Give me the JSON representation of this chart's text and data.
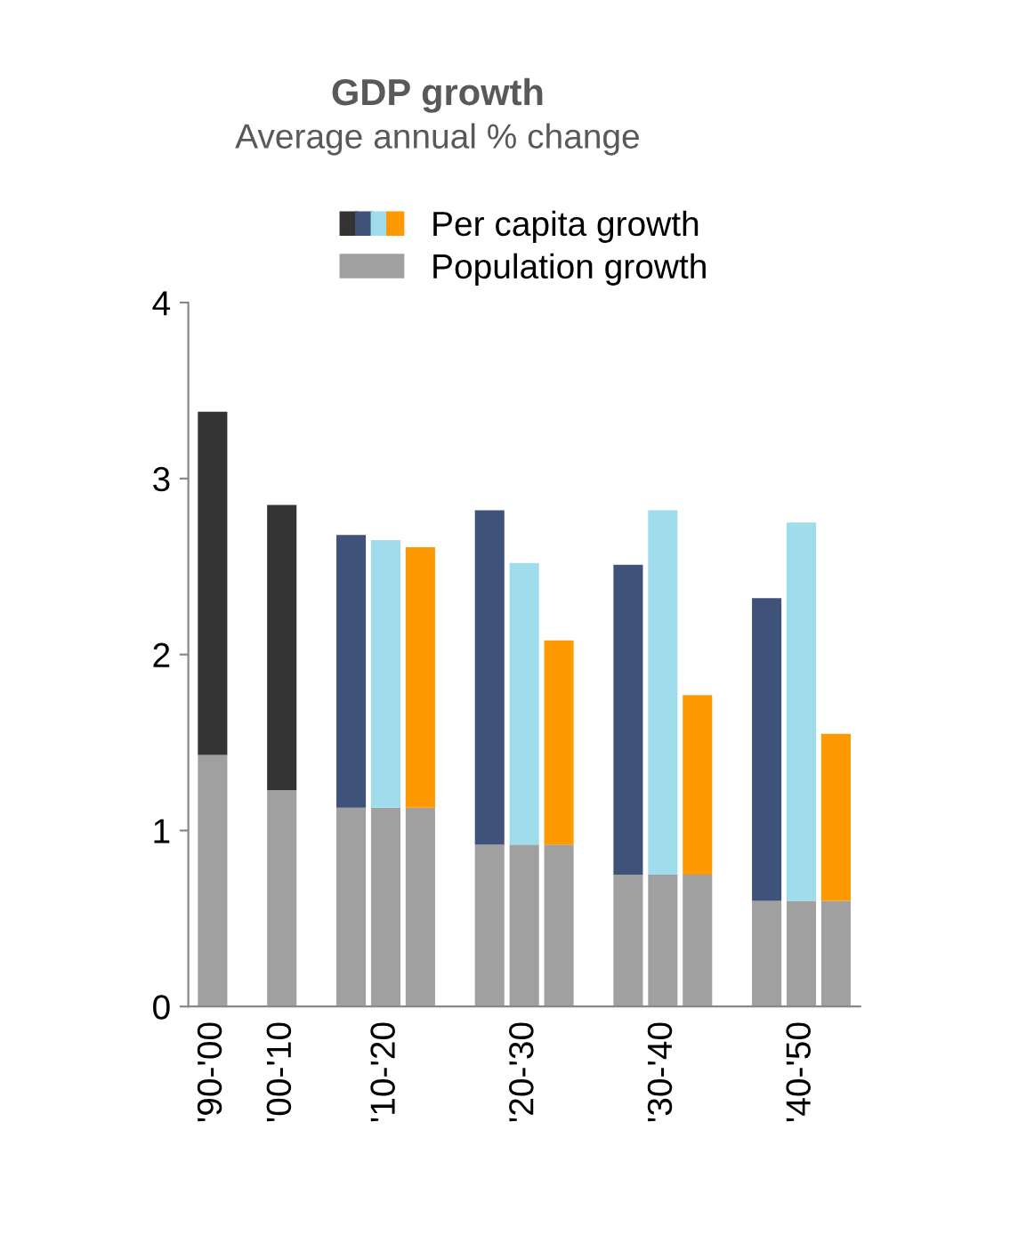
{
  "chart_data": {
    "type": "bar",
    "title": "GDP growth",
    "subtitle": "Average annual % change",
    "stacked": true,
    "categories": [
      "'90-'00",
      null,
      "'00-'10",
      null,
      null,
      "'10-'20",
      null,
      null,
      null,
      "'20-'30",
      null,
      null,
      null,
      "'30-'40",
      null,
      null,
      null,
      "'40-'50",
      null
    ],
    "series": [
      {
        "name": "Population growth",
        "color": "#a0a0a0",
        "values": [
          1.43,
          null,
          1.23,
          null,
          1.13,
          1.13,
          1.13,
          null,
          0.92,
          0.92,
          0.92,
          null,
          0.75,
          0.75,
          0.75,
          null,
          0.6,
          0.6,
          0.6
        ]
      },
      {
        "name": "Per capita growth",
        "colors": [
          "#333333",
          null,
          "#333333",
          null,
          "#3f527a",
          "#9fdcec",
          "#ff9900",
          null,
          "#3f527a",
          "#9fdcec",
          "#ff9900",
          null,
          "#3f527a",
          "#9fdcec",
          "#ff9900",
          null,
          "#3f527a",
          "#9fdcec",
          "#ff9900"
        ],
        "values": [
          1.95,
          null,
          1.62,
          null,
          1.55,
          1.52,
          1.48,
          null,
          1.9,
          1.6,
          1.16,
          null,
          1.76,
          2.07,
          1.02,
          null,
          1.72,
          2.15,
          0.95
        ]
      }
    ],
    "ylim": [
      0,
      4
    ],
    "yticks": [
      0,
      1,
      2,
      3,
      4
    ],
    "grid": false,
    "legend": "top"
  }
}
